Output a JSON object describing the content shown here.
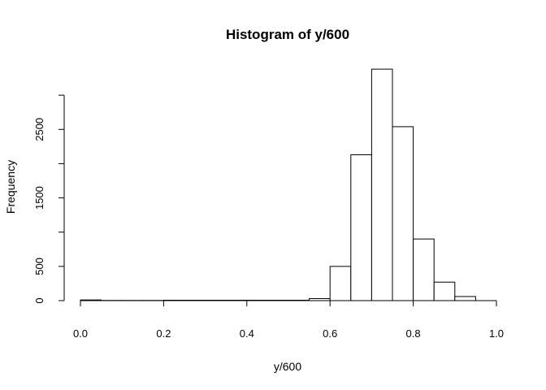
{
  "chart_data": {
    "type": "bar",
    "title": "Histogram of y/600",
    "xlabel": "y/600",
    "ylabel": "Frequency",
    "xlim": [
      0.0,
      1.0
    ],
    "ylim": [
      0,
      3500
    ],
    "x_ticks": [
      0.0,
      0.2,
      0.4,
      0.6,
      0.8,
      1.0
    ],
    "x_tick_labels": [
      "0.0",
      "0.2",
      "0.4",
      "0.6",
      "0.8",
      "1.0"
    ],
    "y_ticks": [
      0,
      500,
      1500,
      2500
    ],
    "y_tick_labels": [
      "0",
      "500",
      "1500",
      "2500"
    ],
    "y_axis_top": 3000,
    "bin_width": 0.05,
    "bins": [
      {
        "start": 0.0,
        "end": 0.05,
        "count": 10
      },
      {
        "start": 0.05,
        "end": 0.1,
        "count": 3
      },
      {
        "start": 0.1,
        "end": 0.15,
        "count": 3
      },
      {
        "start": 0.15,
        "end": 0.2,
        "count": 3
      },
      {
        "start": 0.2,
        "end": 0.25,
        "count": 6
      },
      {
        "start": 0.25,
        "end": 0.3,
        "count": 6
      },
      {
        "start": 0.3,
        "end": 0.35,
        "count": 6
      },
      {
        "start": 0.35,
        "end": 0.4,
        "count": 6
      },
      {
        "start": 0.4,
        "end": 0.45,
        "count": 6
      },
      {
        "start": 0.45,
        "end": 0.5,
        "count": 6
      },
      {
        "start": 0.5,
        "end": 0.55,
        "count": 6
      },
      {
        "start": 0.55,
        "end": 0.6,
        "count": 30
      },
      {
        "start": 0.6,
        "end": 0.65,
        "count": 500
      },
      {
        "start": 0.65,
        "end": 0.7,
        "count": 2130
      },
      {
        "start": 0.7,
        "end": 0.75,
        "count": 3380
      },
      {
        "start": 0.75,
        "end": 0.8,
        "count": 2540
      },
      {
        "start": 0.8,
        "end": 0.85,
        "count": 900
      },
      {
        "start": 0.85,
        "end": 0.9,
        "count": 270
      },
      {
        "start": 0.9,
        "end": 0.95,
        "count": 60
      }
    ],
    "grid": false,
    "legend": "none"
  }
}
